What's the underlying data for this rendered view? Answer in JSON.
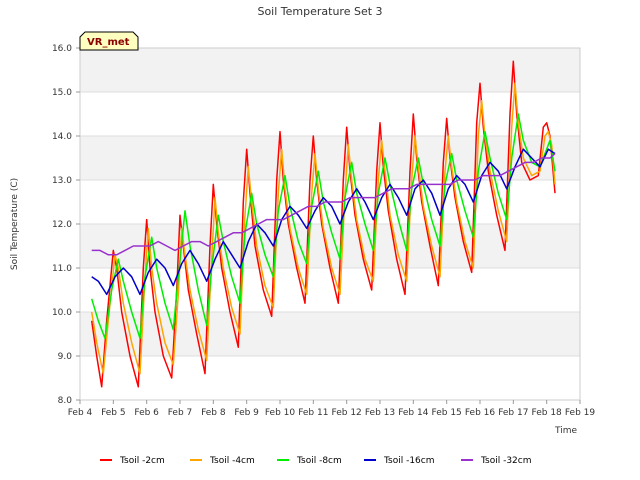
{
  "chart_data": {
    "type": "line",
    "title": "Soil Temperature Set 3",
    "xlabel": "Time",
    "ylabel": "Soil Temperature (C)",
    "site_label": "VR_met",
    "xlim": [
      4,
      19
    ],
    "ylim": [
      8.0,
      16.0
    ],
    "x_ticks": [
      4,
      5,
      6,
      7,
      8,
      9,
      10,
      11,
      12,
      13,
      14,
      15,
      16,
      17,
      18,
      19
    ],
    "x_tick_labels": [
      "Feb 4",
      "Feb 5",
      "Feb 6",
      "Feb 7",
      "Feb 8",
      "Feb 9",
      "Feb 10",
      "Feb 11",
      "Feb 12",
      "Feb 13",
      "Feb 14",
      "Feb 15",
      "Feb 16",
      "Feb 17",
      "Feb 18",
      "Feb 19"
    ],
    "y_ticks": [
      8.0,
      9.0,
      10.0,
      11.0,
      12.0,
      13.0,
      14.0,
      15.0,
      16.0
    ],
    "y_tick_labels": [
      "8.0",
      "9.0",
      "10.0",
      "11.0",
      "12.0",
      "13.0",
      "14.0",
      "15.0",
      "16.0"
    ],
    "grid": true,
    "legend_position": "bottom",
    "series": [
      {
        "name": "Tsoil -2cm",
        "color": "#ff0000",
        "x": [
          4.35,
          4.5,
          4.65,
          4.8,
          5.0,
          5.1,
          5.25,
          5.5,
          5.75,
          5.9,
          6.0,
          6.1,
          6.25,
          6.5,
          6.75,
          6.9,
          7.0,
          7.1,
          7.25,
          7.5,
          7.75,
          7.9,
          8.0,
          8.1,
          8.25,
          8.5,
          8.75,
          8.9,
          9.0,
          9.1,
          9.25,
          9.5,
          9.75,
          9.9,
          10.0,
          10.1,
          10.25,
          10.5,
          10.75,
          10.9,
          11.0,
          11.1,
          11.25,
          11.5,
          11.75,
          11.9,
          12.0,
          12.1,
          12.25,
          12.5,
          12.75,
          12.9,
          13.0,
          13.1,
          13.25,
          13.5,
          13.75,
          13.9,
          14.0,
          14.1,
          14.25,
          14.5,
          14.75,
          14.9,
          15.0,
          15.1,
          15.25,
          15.5,
          15.75,
          15.9,
          16.0,
          16.1,
          16.25,
          16.5,
          16.75,
          16.9,
          17.0,
          17.1,
          17.25,
          17.5,
          17.75,
          17.9,
          18.0,
          18.1,
          18.25
        ],
        "y": [
          9.8,
          9.0,
          8.3,
          9.8,
          11.4,
          11.0,
          10.0,
          9.0,
          8.3,
          11.0,
          12.1,
          11.0,
          10.0,
          9.0,
          8.5,
          10.5,
          12.2,
          11.5,
          10.5,
          9.5,
          8.6,
          11.5,
          12.9,
          12.0,
          11.0,
          10.0,
          9.2,
          12.5,
          13.7,
          12.7,
          11.5,
          10.5,
          9.9,
          13.0,
          14.1,
          13.0,
          12.0,
          11.0,
          10.2,
          13.0,
          14.0,
          13.0,
          12.0,
          11.0,
          10.2,
          13.0,
          14.2,
          13.2,
          12.2,
          11.2,
          10.5,
          13.2,
          14.3,
          13.3,
          12.3,
          11.2,
          10.4,
          13.2,
          14.5,
          13.5,
          12.5,
          11.5,
          10.6,
          13.4,
          14.4,
          13.5,
          12.6,
          11.6,
          10.9,
          14.3,
          15.2,
          14.2,
          13.2,
          12.2,
          11.4,
          14.5,
          15.7,
          14.5,
          13.4,
          13.0,
          13.1,
          14.2,
          14.3,
          14.0,
          12.7
        ]
      },
      {
        "name": "Tsoil -4cm",
        "color": "#ffa500",
        "x": [
          4.35,
          4.5,
          4.7,
          4.85,
          5.05,
          5.15,
          5.3,
          5.55,
          5.8,
          5.95,
          6.05,
          6.15,
          6.3,
          6.55,
          6.8,
          6.95,
          7.05,
          7.15,
          7.3,
          7.55,
          7.8,
          7.95,
          8.05,
          8.15,
          8.3,
          8.55,
          8.8,
          8.95,
          9.05,
          9.15,
          9.3,
          9.55,
          9.8,
          9.95,
          10.05,
          10.15,
          10.3,
          10.55,
          10.8,
          10.95,
          11.05,
          11.15,
          11.3,
          11.55,
          11.8,
          11.95,
          12.05,
          12.15,
          12.3,
          12.55,
          12.8,
          12.95,
          13.05,
          13.15,
          13.3,
          13.55,
          13.8,
          13.95,
          14.05,
          14.15,
          14.3,
          14.55,
          14.8,
          14.95,
          15.05,
          15.15,
          15.3,
          15.55,
          15.8,
          15.95,
          16.05,
          16.15,
          16.3,
          16.55,
          16.8,
          16.95,
          17.05,
          17.15,
          17.3,
          17.55,
          17.8,
          17.95,
          18.05,
          18.15,
          18.25
        ],
        "y": [
          10.0,
          9.3,
          8.6,
          9.8,
          11.3,
          11.0,
          10.2,
          9.3,
          8.6,
          10.8,
          11.9,
          11.0,
          10.2,
          9.3,
          8.8,
          10.4,
          11.9,
          11.3,
          10.5,
          9.6,
          8.9,
          11.2,
          12.6,
          11.8,
          11.0,
          10.1,
          9.5,
          12.2,
          13.3,
          12.5,
          11.5,
          10.6,
          10.1,
          12.7,
          13.7,
          12.8,
          11.9,
          11.0,
          10.4,
          12.7,
          13.6,
          12.8,
          11.9,
          11.0,
          10.4,
          12.7,
          13.8,
          13.0,
          12.1,
          11.2,
          10.7,
          13.0,
          13.9,
          13.2,
          12.2,
          11.3,
          10.7,
          13.0,
          14.0,
          13.3,
          12.4,
          11.5,
          10.8,
          13.2,
          14.0,
          13.3,
          12.5,
          11.6,
          11.0,
          14.0,
          14.8,
          14.0,
          13.2,
          12.3,
          11.6,
          14.2,
          15.2,
          14.3,
          13.5,
          13.1,
          13.2,
          14.0,
          14.1,
          13.8,
          12.9
        ]
      },
      {
        "name": "Tsoil -8cm",
        "color": "#00ee00",
        "x": [
          4.35,
          4.55,
          4.75,
          4.95,
          5.15,
          5.3,
          5.55,
          5.8,
          5.95,
          6.15,
          6.3,
          6.55,
          6.8,
          6.95,
          7.15,
          7.3,
          7.55,
          7.8,
          7.95,
          8.15,
          8.3,
          8.55,
          8.8,
          8.95,
          9.15,
          9.3,
          9.55,
          9.8,
          9.95,
          10.15,
          10.3,
          10.55,
          10.8,
          10.95,
          11.15,
          11.3,
          11.55,
          11.8,
          11.95,
          12.15,
          12.3,
          12.55,
          12.8,
          12.95,
          13.15,
          13.3,
          13.55,
          13.8,
          13.95,
          14.15,
          14.3,
          14.55,
          14.8,
          14.95,
          15.15,
          15.3,
          15.55,
          15.8,
          15.95,
          16.15,
          16.3,
          16.55,
          16.8,
          16.95,
          17.15,
          17.3,
          17.55,
          17.8,
          17.95,
          18.1,
          18.25
        ],
        "y": [
          10.3,
          9.8,
          9.4,
          10.5,
          11.2,
          10.7,
          10.0,
          9.4,
          10.8,
          11.7,
          11.0,
          10.2,
          9.6,
          10.8,
          12.3,
          11.5,
          10.5,
          9.7,
          11.0,
          12.2,
          11.6,
          10.8,
          10.2,
          11.8,
          12.7,
          12.0,
          11.3,
          10.8,
          12.3,
          13.1,
          12.4,
          11.6,
          11.1,
          12.4,
          13.2,
          12.5,
          11.8,
          11.2,
          12.6,
          13.4,
          12.7,
          12.0,
          11.4,
          12.7,
          13.5,
          12.9,
          12.1,
          11.4,
          12.8,
          13.5,
          12.9,
          12.1,
          11.5,
          12.9,
          13.6,
          13.0,
          12.3,
          11.7,
          13.2,
          14.1,
          13.5,
          12.7,
          12.1,
          13.5,
          14.5,
          13.9,
          13.4,
          13.3,
          13.6,
          13.9,
          13.2
        ]
      },
      {
        "name": "Tsoil -16cm",
        "color": "#0000cc",
        "x": [
          4.35,
          4.55,
          4.8,
          5.05,
          5.3,
          5.55,
          5.8,
          6.05,
          6.3,
          6.55,
          6.8,
          7.05,
          7.3,
          7.55,
          7.8,
          8.05,
          8.3,
          8.55,
          8.8,
          9.05,
          9.3,
          9.55,
          9.8,
          10.05,
          10.3,
          10.55,
          10.8,
          11.05,
          11.3,
          11.55,
          11.8,
          12.05,
          12.3,
          12.55,
          12.8,
          13.05,
          13.3,
          13.55,
          13.8,
          14.05,
          14.3,
          14.55,
          14.8,
          15.05,
          15.3,
          15.55,
          15.8,
          16.05,
          16.3,
          16.55,
          16.8,
          17.05,
          17.3,
          17.55,
          17.8,
          18.05,
          18.25
        ],
        "y": [
          10.8,
          10.7,
          10.4,
          10.8,
          11.0,
          10.8,
          10.4,
          10.9,
          11.2,
          11.0,
          10.6,
          11.1,
          11.4,
          11.1,
          10.7,
          11.2,
          11.6,
          11.3,
          11.0,
          11.6,
          12.0,
          11.8,
          11.5,
          12.1,
          12.4,
          12.2,
          11.9,
          12.3,
          12.6,
          12.4,
          12.0,
          12.5,
          12.8,
          12.5,
          12.1,
          12.6,
          12.9,
          12.6,
          12.2,
          12.8,
          13.0,
          12.7,
          12.2,
          12.8,
          13.1,
          12.9,
          12.5,
          13.1,
          13.4,
          13.2,
          12.8,
          13.3,
          13.7,
          13.5,
          13.3,
          13.7,
          13.6
        ]
      },
      {
        "name": "Tsoil -32cm",
        "color": "#9932cc",
        "x": [
          4.35,
          4.6,
          4.85,
          5.1,
          5.35,
          5.6,
          5.85,
          6.1,
          6.35,
          6.6,
          6.85,
          7.1,
          7.35,
          7.6,
          7.85,
          8.1,
          8.35,
          8.6,
          8.85,
          9.1,
          9.35,
          9.6,
          9.85,
          10.1,
          10.35,
          10.6,
          10.85,
          11.1,
          11.35,
          11.6,
          11.85,
          12.1,
          12.35,
          12.6,
          12.85,
          13.1,
          13.35,
          13.6,
          13.85,
          14.1,
          14.35,
          14.6,
          14.85,
          15.1,
          15.35,
          15.6,
          15.85,
          16.1,
          16.35,
          16.6,
          16.85,
          17.1,
          17.35,
          17.6,
          17.85,
          18.1,
          18.25
        ],
        "y": [
          11.4,
          11.4,
          11.3,
          11.3,
          11.4,
          11.5,
          11.5,
          11.5,
          11.6,
          11.5,
          11.4,
          11.5,
          11.6,
          11.6,
          11.5,
          11.6,
          11.7,
          11.8,
          11.8,
          11.9,
          12.0,
          12.1,
          12.1,
          12.1,
          12.2,
          12.3,
          12.4,
          12.4,
          12.5,
          12.5,
          12.5,
          12.6,
          12.6,
          12.6,
          12.6,
          12.7,
          12.8,
          12.8,
          12.8,
          12.9,
          12.9,
          12.9,
          12.9,
          12.9,
          13.0,
          13.0,
          13.0,
          13.1,
          13.1,
          13.1,
          13.2,
          13.3,
          13.4,
          13.4,
          13.5,
          13.5,
          13.6
        ]
      }
    ]
  }
}
